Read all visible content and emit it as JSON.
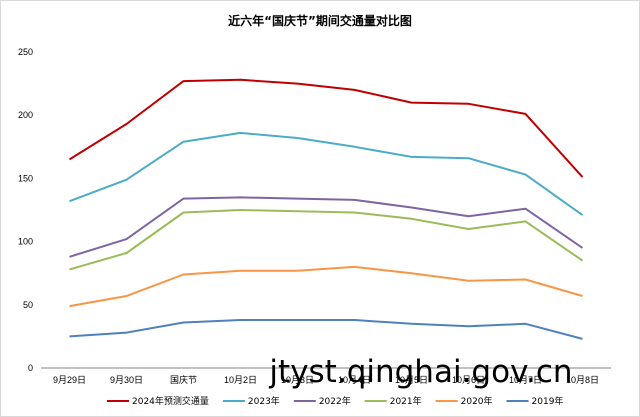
{
  "chart_data": {
    "type": "line",
    "title": "近六年“国庆节”期间交通量对比图",
    "categories": [
      "9月29日",
      "9月30日",
      "国庆节",
      "10月2日",
      "10月3日",
      "10月4日",
      "10月5日",
      "10月6日",
      "10月7日",
      "10月8日"
    ],
    "ylim": [
      0,
      250
    ],
    "yticks": [
      0,
      50,
      100,
      150,
      200,
      250
    ],
    "grid": false,
    "legend_position": "bottom",
    "series": [
      {
        "name": "2024年预测交通量",
        "color": "#c00000",
        "values": [
          165,
          193,
          227,
          228,
          225,
          220,
          210,
          209,
          201,
          151
        ]
      },
      {
        "name": "2023年",
        "color": "#4bacc6",
        "values": [
          132,
          149,
          179,
          186,
          182,
          175,
          167,
          166,
          153,
          121
        ]
      },
      {
        "name": "2022年",
        "color": "#8064a2",
        "values": [
          88,
          102,
          134,
          135,
          134,
          133,
          127,
          120,
          126,
          95
        ]
      },
      {
        "name": "2021年",
        "color": "#9bbb59",
        "values": [
          78,
          91,
          123,
          125,
          124,
          123,
          118,
          110,
          116,
          85
        ]
      },
      {
        "name": "2020年",
        "color": "#f79646",
        "values": [
          49,
          57,
          74,
          77,
          77,
          80,
          75,
          69,
          70,
          57
        ]
      },
      {
        "name": "2019年",
        "color": "#4f81bd",
        "values": [
          25,
          28,
          36,
          38,
          38,
          38,
          35,
          33,
          35,
          23
        ]
      }
    ]
  },
  "watermark": "jtyst.qinghai.gov.cn"
}
